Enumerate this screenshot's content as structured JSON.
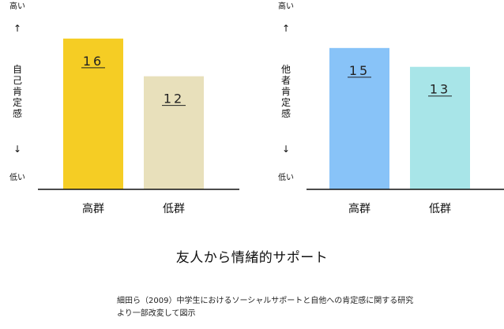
{
  "chart_data": [
    {
      "type": "bar",
      "categories": [
        "高群",
        "低群"
      ],
      "values": [
        16,
        12
      ],
      "colors": [
        "#F5CD24",
        "#E8E0BB"
      ],
      "ylabel": "自己肯定感",
      "y_top_label": "高い",
      "y_bottom_label": "低い",
      "ylim": [
        0,
        18
      ],
      "value_underlined": true
    },
    {
      "type": "bar",
      "categories": [
        "高群",
        "低群"
      ],
      "values": [
        15,
        13
      ],
      "colors": [
        "#88C3F8",
        "#A8E5E8"
      ],
      "ylabel": "他者肯定感",
      "y_top_label": "高い",
      "y_bottom_label": "低い",
      "ylim": [
        0,
        18
      ],
      "value_underlined": true
    }
  ],
  "title": "友人から情緒的サポート",
  "source": {
    "line1": "細田ら（2009）中学生におけるソーシャルサポートと自他への肯定感に関する研究",
    "line2": "より一部改変して図示"
  },
  "arrows": {
    "up": "↑",
    "down": "↓"
  }
}
